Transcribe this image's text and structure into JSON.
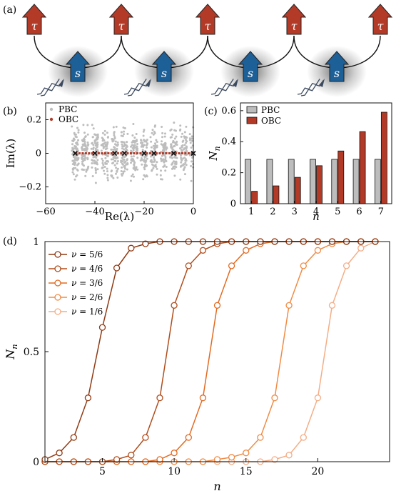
{
  "panel_a": {
    "label": "(a)",
    "top_spin_label": "τ",
    "bottom_spin_label": "s",
    "colors": {
      "top": "#b23a27",
      "bottom": "#1d5f97"
    }
  },
  "chart_data": [
    {
      "panel": "(b)",
      "type": "scatter",
      "xlabel": "Re(λ)",
      "ylabel": "Im(λ)",
      "xlim": [
        -60,
        0
      ],
      "ylim": [
        -0.3,
        0.3
      ],
      "xticks": [
        "-60",
        "-40",
        "-20",
        "0"
      ],
      "yticks": [
        "-0.2",
        "0",
        "0.2"
      ],
      "legend": "top-left",
      "series": [
        {
          "name": "PBC",
          "color": "#bdbdbd",
          "clusters_x": [
            -48,
            -44,
            -40,
            -36,
            -32,
            -28,
            -24,
            -20,
            -16,
            -12,
            -8,
            -4,
            0
          ],
          "y_spread": 0.2
        },
        {
          "name": "OBC",
          "color": "#b23a27",
          "x_range": [
            -48,
            0
          ],
          "y": 0
        }
      ],
      "crosses_x": [
        -48,
        -40,
        -32,
        -28,
        -20,
        -16,
        -8,
        0
      ]
    },
    {
      "panel": "(c)",
      "type": "bar",
      "xlabel": "n",
      "ylabel": "N_n",
      "ylim": [
        0,
        0.65
      ],
      "categories": [
        "1",
        "2",
        "3",
        "4",
        "5",
        "6",
        "7"
      ],
      "yticks": [
        "0",
        "0.2",
        "0.4",
        "0.6"
      ],
      "legend": "top-left",
      "series": [
        {
          "name": "PBC",
          "color": "#bdbdbd",
          "values": [
            0.286,
            0.286,
            0.286,
            0.286,
            0.286,
            0.286,
            0.286
          ]
        },
        {
          "name": "OBC",
          "color": "#b23a27",
          "values": [
            0.08,
            0.115,
            0.17,
            0.245,
            0.34,
            0.465,
            0.59
          ]
        }
      ]
    },
    {
      "panel": "(d)",
      "type": "line",
      "xlabel": "n",
      "ylabel": "N_n",
      "xlim": [
        1,
        25
      ],
      "ylim": [
        0,
        1
      ],
      "xticks": [
        "5",
        "10",
        "15",
        "20"
      ],
      "yticks": [
        "0",
        "0.5",
        "1"
      ],
      "legend": "top-left",
      "x": [
        1,
        2,
        3,
        4,
        5,
        6,
        7,
        8,
        9,
        10,
        11,
        12,
        13,
        14,
        15,
        16,
        17,
        18,
        19,
        20,
        21,
        22,
        23,
        24
      ],
      "series": [
        {
          "name": "ν = 5/6",
          "color": "#8f3a14",
          "values": [
            0.01,
            0.04,
            0.11,
            0.29,
            0.61,
            0.88,
            0.97,
            0.99,
            1,
            1,
            1,
            1,
            1,
            1,
            1,
            1,
            1,
            1,
            1,
            1,
            1,
            1,
            1,
            1
          ]
        },
        {
          "name": "ν = 4/6",
          "color": "#b04d1c",
          "values": [
            0,
            0,
            0,
            0,
            0,
            0.01,
            0.03,
            0.11,
            0.29,
            0.71,
            0.89,
            0.96,
            0.99,
            1,
            1,
            1,
            1,
            1,
            1,
            1,
            1,
            1,
            1,
            1
          ]
        },
        {
          "name": "ν = 3/6",
          "color": "#e26a22",
          "values": [
            0,
            0,
            0,
            0,
            0,
            0,
            0,
            0,
            0.01,
            0.04,
            0.11,
            0.29,
            0.71,
            0.89,
            0.96,
            0.99,
            1,
            1,
            1,
            1,
            1,
            1,
            1,
            1
          ]
        },
        {
          "name": "ν = 2/6",
          "color": "#f08b45",
          "values": [
            0,
            0,
            0,
            0,
            0,
            0,
            0,
            0,
            0,
            0,
            0,
            0,
            0.01,
            0.02,
            0.04,
            0.11,
            0.29,
            0.71,
            0.89,
            0.96,
            0.99,
            1,
            1,
            1
          ]
        },
        {
          "name": "ν = 1/6",
          "color": "#f4ad86",
          "values": [
            0,
            0,
            0,
            0,
            0,
            0,
            0,
            0,
            0,
            0,
            0,
            0,
            0,
            0,
            0,
            0,
            0.01,
            0.03,
            0.11,
            0.29,
            0.71,
            0.89,
            0.97,
            1
          ]
        }
      ]
    }
  ]
}
